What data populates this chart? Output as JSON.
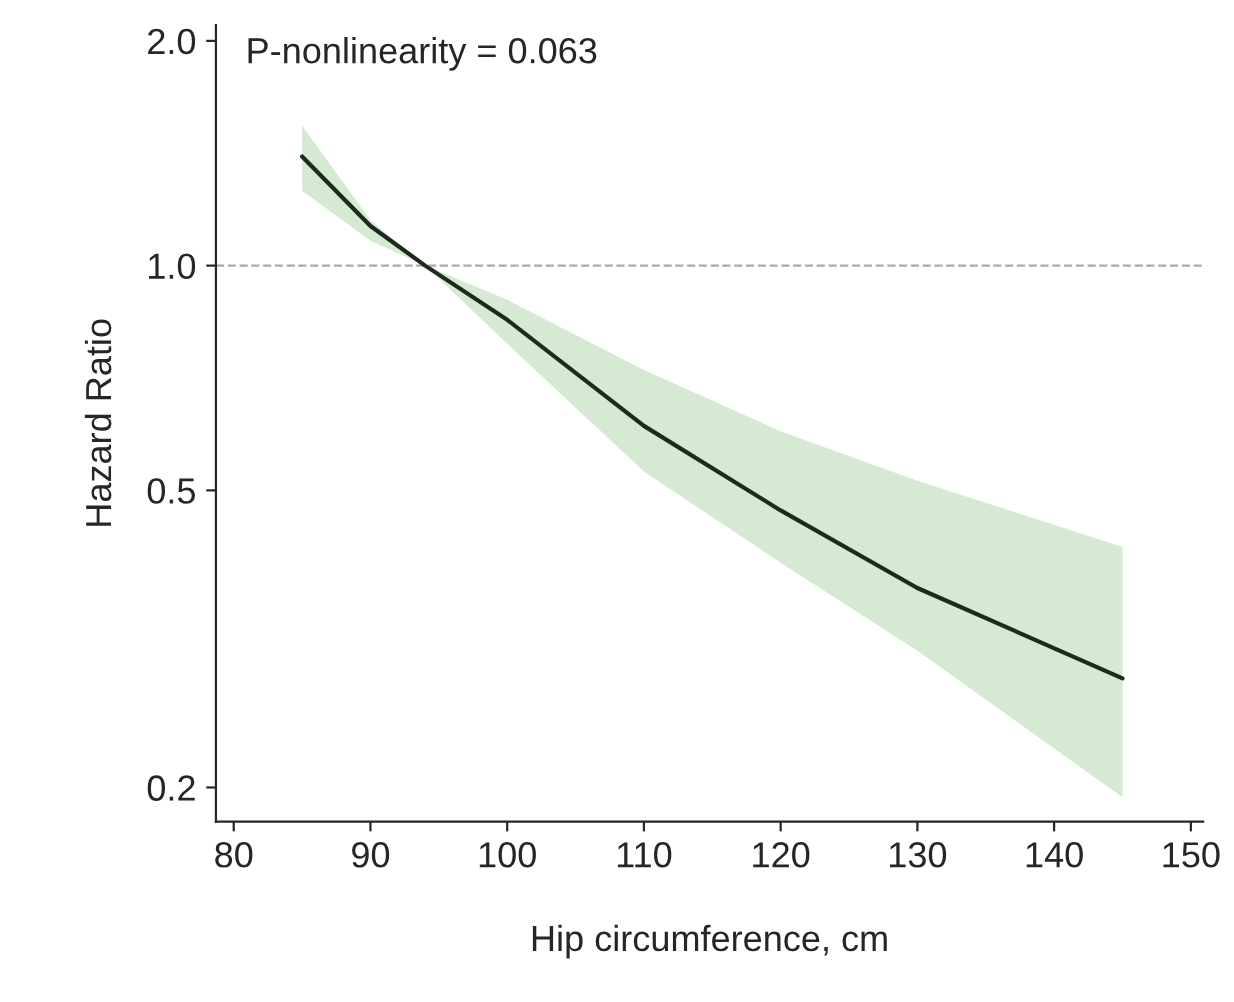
{
  "chart_data": {
    "type": "line",
    "xlabel": "Hip circumference, cm",
    "ylabel": "Hazard Ratio",
    "annotations": [
      "P-nonlinearity = 0.063"
    ],
    "x": [
      85,
      90,
      94,
      100,
      110,
      120,
      130,
      145
    ],
    "series": [
      {
        "color": "#1c2b1c",
        "values": [
          1.4,
          1.13,
          1.0,
          0.846,
          0.61,
          0.47,
          0.37,
          0.28
        ],
        "lower": [
          1.26,
          1.08,
          1.0,
          0.786,
          0.53,
          0.4,
          0.305,
          0.194
        ],
        "upper": [
          1.54,
          1.15,
          1.0,
          0.9,
          0.725,
          0.6,
          0.515,
          0.42
        ]
      }
    ],
    "log": "y",
    "xlim": [
      78.7,
      150.9
    ],
    "ylim": [
      0.18,
      2.1
    ],
    "xticks": [
      80,
      90,
      100,
      110,
      120,
      130,
      140,
      150
    ],
    "yticks": [
      {
        "value": 0.2,
        "label": "0.2"
      },
      {
        "value": 0.5,
        "label": "0.5"
      },
      {
        "value": 1,
        "label": "1.0"
      },
      {
        "value": 2,
        "label": "2.0"
      }
    ],
    "ref_lines": [
      {
        "axis": "y",
        "value": 1,
        "color": "#aaaaaa",
        "line_style": "dashed"
      }
    ],
    "grid": false,
    "legend": false,
    "line_style": "solid",
    "marker": "none"
  }
}
